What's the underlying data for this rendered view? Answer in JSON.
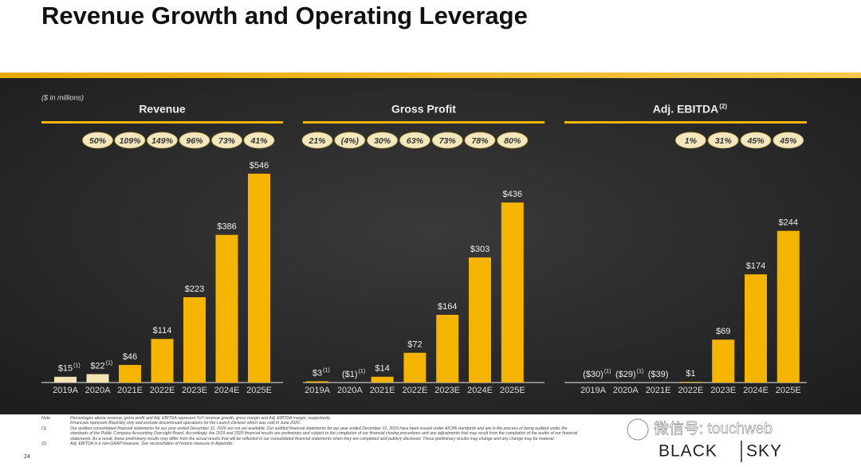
{
  "title": "Revenue Growth and Operating Leverage",
  "units": "($ in millions)",
  "chart_data": [
    {
      "type": "bar",
      "title": "Revenue",
      "categories": [
        "2019A",
        "2020A",
        "2021E",
        "2022E",
        "2023E",
        "2024E",
        "2025E"
      ],
      "values": [
        15,
        22,
        46,
        114,
        223,
        386,
        546
      ],
      "value_labels": [
        "$15",
        "$22",
        "$46",
        "$114",
        "$223",
        "$386",
        "$546"
      ],
      "value_notes": [
        "(1)",
        "(1)",
        null,
        null,
        null,
        null,
        null
      ],
      "margin_labels": [
        null,
        "50%",
        "109%",
        "149%",
        "96%",
        "73%",
        "41%"
      ],
      "colors": [
        "#f3e4b4",
        "#f3e4b4",
        "#f4b400",
        "#f4b400",
        "#f4b400",
        "#f4b400",
        "#f4b400"
      ]
    },
    {
      "type": "bar",
      "title": "Gross Profit",
      "categories": [
        "2019A",
        "2020A",
        "2021E",
        "2022E",
        "2023E",
        "2024E",
        "2025E"
      ],
      "values": [
        3,
        -1,
        14,
        72,
        164,
        303,
        436
      ],
      "value_labels": [
        "$3",
        "($1)",
        "$14",
        "$72",
        "$164",
        "$303",
        "$436"
      ],
      "value_notes": [
        "(1)",
        "(1)",
        null,
        null,
        null,
        null,
        null
      ],
      "margin_labels": [
        "21%",
        "(4%)",
        "30%",
        "63%",
        "73%",
        "78%",
        "80%"
      ],
      "colors": [
        "#f4b400",
        "#f4b400",
        "#f4b400",
        "#f4b400",
        "#f4b400",
        "#f4b400",
        "#f4b400"
      ]
    },
    {
      "type": "bar",
      "title": "Adj. EBITDA",
      "title_note": "(2)",
      "categories": [
        "2019A",
        "2020A",
        "2021E",
        "2022E",
        "2023E",
        "2024E",
        "2025E"
      ],
      "values": [
        -30,
        -29,
        -39,
        1,
        69,
        174,
        244
      ],
      "value_labels": [
        "($30)",
        "($29)",
        "($39)",
        "$1",
        "$69",
        "$174",
        "$244"
      ],
      "value_notes": [
        "(1)",
        "(1)",
        null,
        null,
        null,
        null,
        null
      ],
      "margin_labels": [
        null,
        null,
        null,
        "1%",
        "31%",
        "45%",
        "45%"
      ],
      "colors": [
        "#f4b400",
        "#f4b400",
        "#f4b400",
        "#f4b400",
        "#f4b400",
        "#f4b400",
        "#f4b400"
      ]
    }
  ],
  "notes": [
    {
      "mark": "Note",
      "text": "Percentages above revenue, gross profit and Adj. EBITDA represent YoY revenue growth, gross margin and Adj. EBITDA margin, respectively."
    },
    {
      "mark": "",
      "text": "Financials represent BlackSky only and exclude discontinued operations for the Launch Division which was sold in June 2020."
    },
    {
      "mark": "(1)",
      "text": "Our audited consolidated financial statements for our year ended December 31, 2020 are not yet available. Our audited financial statements for our year ended December 31, 2019 have been issued under AICPA standards and are in the process of being audited under the standards of the Public Company Accounting Oversight Board. Accordingly, the 2019 and 2020 financial results are preliminary and subject to the completion of our financial closing procedures and any adjustments that may result from the completion of the audits of our financial statements. As a result, these preliminary results may differ from the actual results that will be reflected in our consolidated financial statements when they are completed and publicly disclosed. These preliminary results may change and any change may be material."
    },
    {
      "mark": "(2)",
      "text": "Adj. EBITDA is a non-GAAP measure. See reconciliation of historic measure in Appendix."
    }
  ],
  "page_number": "24",
  "logo": [
    "BLACK",
    "SKY"
  ],
  "watermark": "微信号: touchweb"
}
